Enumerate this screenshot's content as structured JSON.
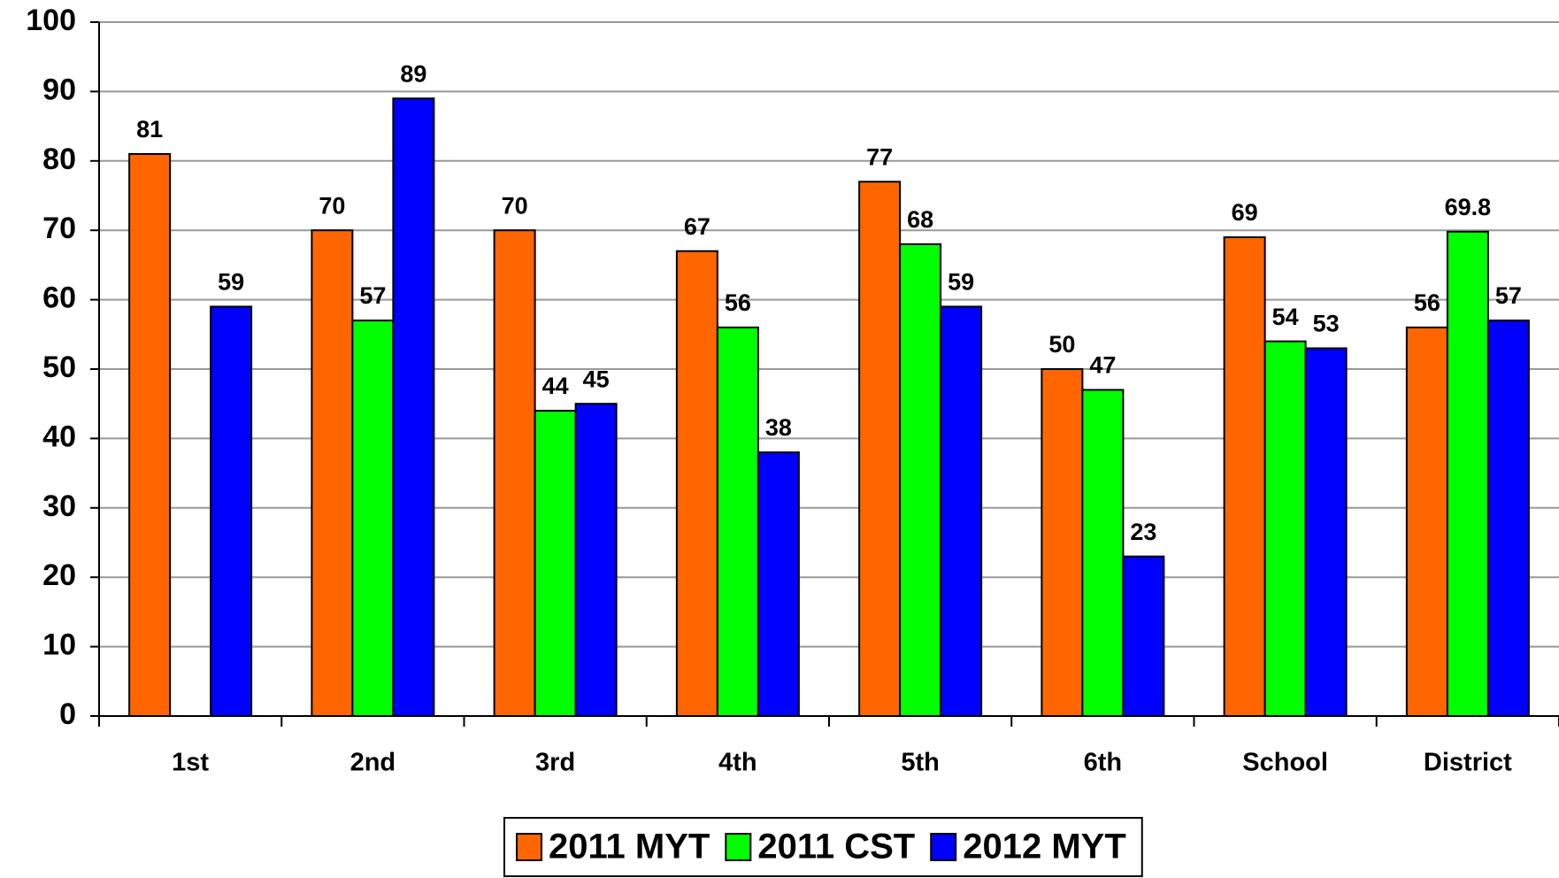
{
  "chart_data": {
    "type": "bar",
    "categories": [
      "1st",
      "2nd",
      "3rd",
      "4th",
      "5th",
      "6th",
      "School",
      "District"
    ],
    "series": [
      {
        "name": "2011 MYT",
        "color": "#ff6600",
        "values": [
          81,
          70,
          70,
          67,
          77,
          50,
          69,
          56
        ]
      },
      {
        "name": "2011 CST",
        "color": "#00ff00",
        "values": [
          null,
          57,
          44,
          56,
          68,
          47,
          54,
          69.8
        ]
      },
      {
        "name": "2012 MYT",
        "color": "#0000ff",
        "values": [
          59,
          89,
          45,
          38,
          59,
          23,
          53,
          57
        ]
      }
    ],
    "ylim": [
      0,
      100
    ],
    "yticks": [
      0,
      10,
      20,
      30,
      40,
      50,
      60,
      70,
      80,
      90,
      100
    ],
    "grid": true,
    "legend": "bottom"
  }
}
